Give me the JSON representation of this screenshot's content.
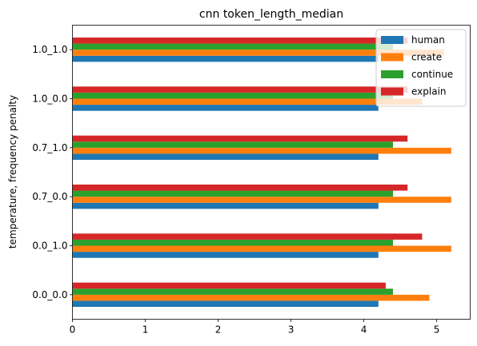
{
  "chart_data": {
    "type": "bar",
    "orientation": "horizontal",
    "title": "cnn token_length_median",
    "xlabel": "",
    "ylabel": "temperature, frequency penalty",
    "xlim": [
      0,
      5.46
    ],
    "xticks": [
      0,
      1,
      2,
      3,
      4,
      5
    ],
    "categories": [
      "0.0_0.0",
      "0.0_1.0",
      "0.7_0.0",
      "0.7_1.0",
      "1.0_0.0",
      "1.0_1.0"
    ],
    "series": [
      {
        "name": "human",
        "color": "#1f77b4",
        "values": [
          4.2,
          4.2,
          4.2,
          4.2,
          4.2,
          4.2
        ]
      },
      {
        "name": "create",
        "color": "#ff7f0e",
        "values": [
          4.9,
          5.2,
          5.2,
          5.2,
          4.8,
          5.1
        ]
      },
      {
        "name": "continue",
        "color": "#2ca02c",
        "values": [
          4.4,
          4.4,
          4.4,
          4.4,
          4.4,
          4.4
        ]
      },
      {
        "name": "explain",
        "color": "#d62728",
        "values": [
          4.3,
          4.8,
          4.6,
          4.6,
          4.6,
          4.6
        ]
      }
    ],
    "legend": "top-right",
    "grid": false
  }
}
